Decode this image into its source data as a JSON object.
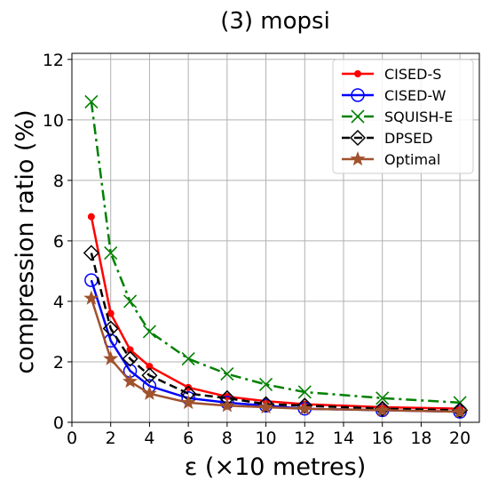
{
  "chart_data": {
    "type": "line",
    "title": "(3) mopsi",
    "xlabel": "ε (×10 metres)",
    "ylabel": "compression ratio (%)",
    "xlim": [
      0,
      21
    ],
    "ylim": [
      0,
      12.2
    ],
    "xticks": [
      0,
      2,
      4,
      6,
      8,
      10,
      12,
      14,
      16,
      18,
      20
    ],
    "yticks": [
      0,
      2,
      4,
      6,
      8,
      10,
      12
    ],
    "grid": true,
    "legend_position": "top-right",
    "series": [
      {
        "name": "CISED-S",
        "color": "#ff0000",
        "dash": "solid",
        "marker": "dot",
        "x": [
          1,
          2,
          3,
          4,
          6,
          8,
          10,
          12,
          16,
          20
        ],
        "values": [
          6.8,
          3.6,
          2.4,
          1.85,
          1.15,
          0.85,
          0.7,
          0.6,
          0.5,
          0.45
        ]
      },
      {
        "name": "CISED-W",
        "color": "#0000ff",
        "dash": "solid",
        "marker": "circle",
        "x": [
          1,
          2,
          3,
          4,
          6,
          8,
          10,
          12,
          16,
          20
        ],
        "values": [
          4.7,
          2.7,
          1.7,
          1.2,
          0.8,
          0.65,
          0.55,
          0.45,
          0.4,
          0.35
        ]
      },
      {
        "name": "SQUISH-E",
        "color": "#008000",
        "dash": "dashdot",
        "marker": "x",
        "x": [
          1,
          2,
          3,
          4,
          6,
          8,
          10,
          12,
          16,
          20
        ],
        "values": [
          10.6,
          5.6,
          4.0,
          3.0,
          2.1,
          1.6,
          1.25,
          1.0,
          0.8,
          0.65
        ]
      },
      {
        "name": "DPSED",
        "color": "#000000",
        "dash": "dashed",
        "marker": "diamond",
        "x": [
          1,
          2,
          3,
          4,
          6,
          8,
          10,
          12,
          16,
          20
        ],
        "values": [
          5.6,
          3.1,
          2.1,
          1.55,
          0.95,
          0.8,
          0.6,
          0.55,
          0.45,
          0.4
        ]
      },
      {
        "name": "Optimal",
        "color": "#a0522d",
        "dash": "solid",
        "marker": "star",
        "x": [
          1,
          2,
          3,
          4,
          6,
          8,
          10,
          12,
          16,
          20
        ],
        "values": [
          4.1,
          2.1,
          1.35,
          0.95,
          0.65,
          0.55,
          0.5,
          0.45,
          0.4,
          0.35
        ]
      }
    ]
  }
}
